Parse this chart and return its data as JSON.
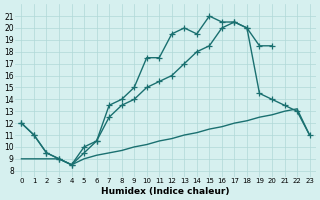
{
  "xlabel": "Humidex (Indice chaleur)",
  "bg_color": "#d6f0ef",
  "line_color": "#1a7070",
  "grid_color": "#b0d8d8",
  "xlim": [
    -0.5,
    23.5
  ],
  "ylim": [
    7.5,
    22
  ],
  "xticks": [
    0,
    1,
    2,
    3,
    4,
    5,
    6,
    7,
    8,
    9,
    10,
    11,
    12,
    13,
    14,
    15,
    16,
    17,
    18,
    19,
    20,
    21,
    22,
    23
  ],
  "yticks": [
    8,
    9,
    10,
    11,
    12,
    13,
    14,
    15,
    16,
    17,
    18,
    19,
    20,
    21
  ],
  "line1_x": [
    0,
    1,
    2,
    3,
    4,
    5,
    6,
    7,
    8,
    9,
    10,
    11,
    12,
    13,
    14,
    15,
    16,
    17,
    18,
    19,
    20
  ],
  "line1_y": [
    12,
    11,
    9.5,
    9,
    8.5,
    10,
    10.5,
    13.5,
    14,
    15,
    17.5,
    17.5,
    19.5,
    20,
    19.5,
    21,
    20.5,
    20.5,
    20,
    18.5,
    18.5
  ],
  "line2_x": [
    0,
    1,
    2,
    3,
    4,
    5,
    6,
    7,
    8,
    9,
    10,
    11,
    12,
    13,
    14,
    15,
    16,
    17,
    18,
    19,
    20,
    21,
    22,
    23
  ],
  "line2_y": [
    12,
    11,
    9.5,
    9,
    8.5,
    9.5,
    10.5,
    12.5,
    13.5,
    14,
    15,
    15.5,
    16,
    17,
    18,
    18.5,
    20,
    20.5,
    20,
    14.5,
    14,
    13.5,
    13,
    11
  ],
  "line3_x": [
    0,
    1,
    2,
    3,
    4,
    5,
    6,
    7,
    8,
    9,
    10,
    11,
    12,
    13,
    14,
    15,
    16,
    17,
    18,
    19,
    20,
    21,
    22,
    23
  ],
  "line3_y": [
    9,
    9,
    9,
    9,
    8.5,
    9,
    9.3,
    9.5,
    9.7,
    10,
    10.2,
    10.5,
    10.7,
    11,
    11.2,
    11.5,
    11.7,
    12,
    12.2,
    12.5,
    12.7,
    13,
    13.2,
    11
  ],
  "marker_size": 4,
  "line_width": 1.0
}
